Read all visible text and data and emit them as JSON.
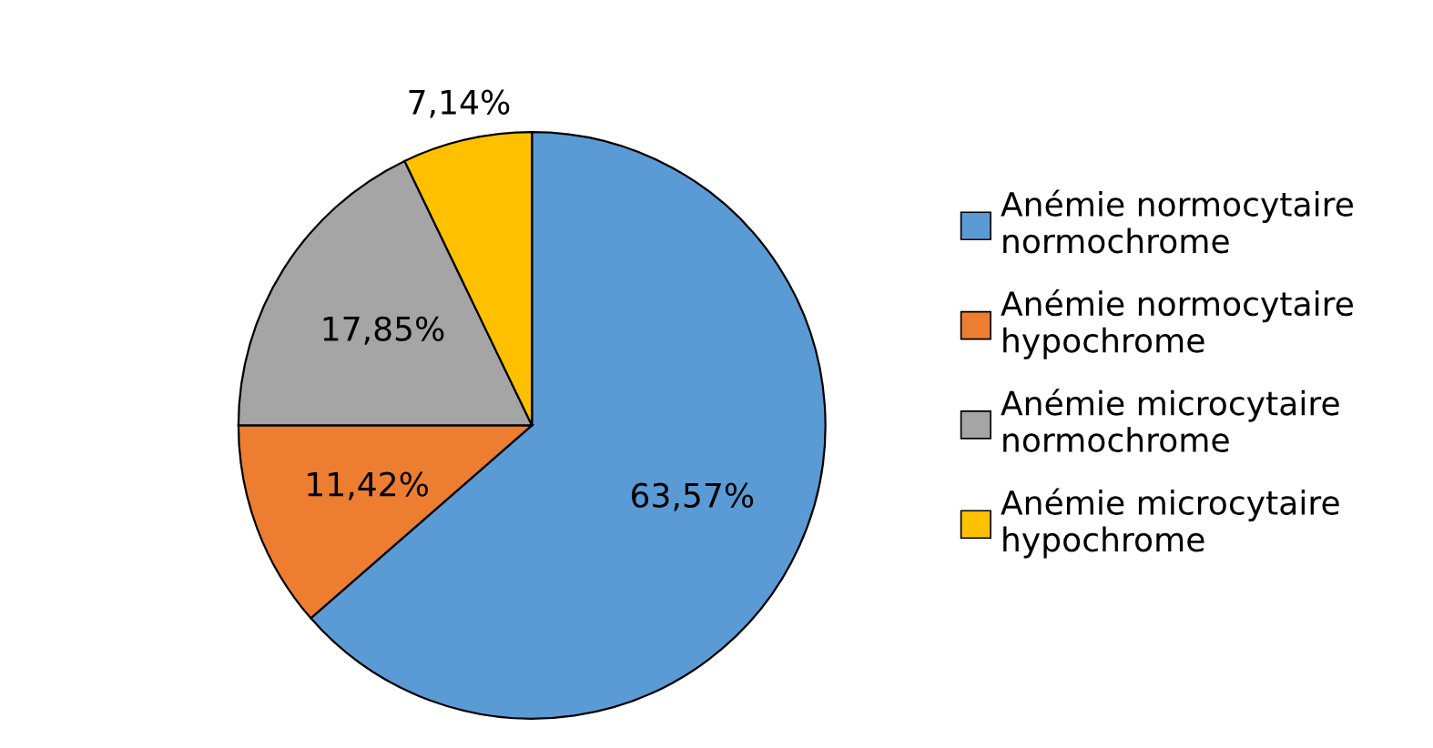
{
  "chart_data": {
    "type": "pie",
    "categories": [
      "Anémie normocytaire normochrome",
      "Anémie normocytaire hypochrome",
      "Anémie microcytaire normochrome",
      "Anémie microcytaire hypochrome"
    ],
    "values": [
      63.57,
      11.42,
      17.85,
      7.14
    ],
    "colors": [
      "#5b9bd5",
      "#ed7d31",
      "#a5a5a5",
      "#ffc000"
    ],
    "value_labels": [
      "63,57%",
      "11,42%",
      "17,85%",
      "7,14%"
    ],
    "legend": "right"
  }
}
